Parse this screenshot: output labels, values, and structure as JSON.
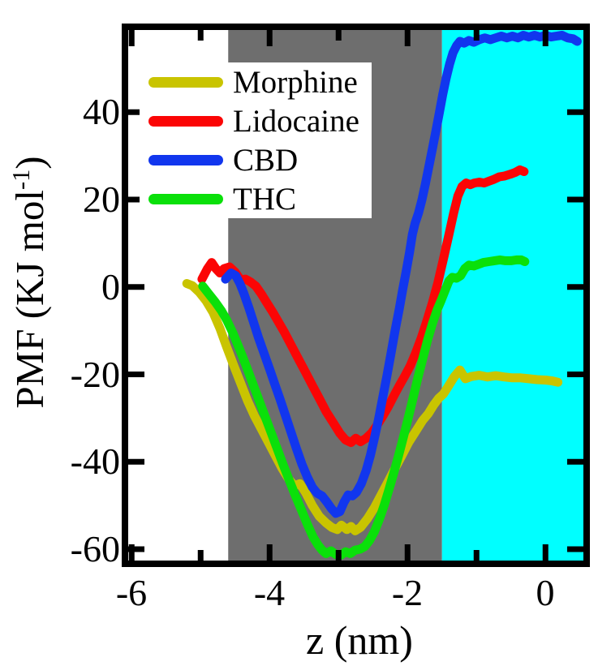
{
  "chart_data": {
    "type": "line",
    "title": "",
    "xlabel": "z (nm)",
    "ylabel": "PMF (KJ mol -1)",
    "ylabel_parts": {
      "main": "PMF (KJ mol",
      "superscript": "-1",
      "close": ")"
    },
    "xlim": [
      -6.05,
      0.55
    ],
    "ylim": [
      -62.6,
      58.8
    ],
    "grid": false,
    "x_ticks_major": [
      {
        "value": -6,
        "label": "-6"
      },
      {
        "value": -4,
        "label": "-4"
      },
      {
        "value": -2,
        "label": "-2"
      },
      {
        "value": 0,
        "label": "0"
      }
    ],
    "x_ticks_minor": [
      -5,
      -3,
      -1
    ],
    "y_ticks_major": [
      {
        "value": 40,
        "label": "40"
      },
      {
        "value": 20,
        "label": "20"
      },
      {
        "value": 0,
        "label": "0"
      },
      {
        "value": -20,
        "label": "-20"
      },
      {
        "value": -40,
        "label": "-40"
      },
      {
        "value": -60,
        "label": "-60"
      }
    ],
    "regions": [
      {
        "name": "gray-band",
        "x0": -4.6,
        "x1": -1.5,
        "color": "#6e6e6e"
      },
      {
        "name": "cyan-band",
        "x0": -1.5,
        "x1": 0.55,
        "color": "#00ffff"
      }
    ],
    "legend": {
      "position": "upper-left",
      "entries": [
        "Morphine",
        "Lidocaine",
        "CBD",
        "THC"
      ]
    },
    "series": [
      {
        "name": "Morphine",
        "color": "#c9c400",
        "points": [
          [
            -5.2,
            0.8
          ],
          [
            -5.12,
            0.3
          ],
          [
            -5.02,
            -1.2
          ],
          [
            -4.92,
            -3.2
          ],
          [
            -4.82,
            -5.8
          ],
          [
            -4.72,
            -9.5
          ],
          [
            -4.62,
            -13.8
          ],
          [
            -4.52,
            -18.0
          ],
          [
            -4.42,
            -22.0
          ],
          [
            -4.32,
            -26.0
          ],
          [
            -4.22,
            -29.5
          ],
          [
            -4.12,
            -32.5
          ],
          [
            -4.02,
            -35.5
          ],
          [
            -3.92,
            -38.5
          ],
          [
            -3.82,
            -41.5
          ],
          [
            -3.72,
            -44.0
          ],
          [
            -3.64,
            -45.5
          ],
          [
            -3.56,
            -45.0
          ],
          [
            -3.48,
            -47.0
          ],
          [
            -3.38,
            -50.0
          ],
          [
            -3.28,
            -52.5
          ],
          [
            -3.18,
            -54.0
          ],
          [
            -3.1,
            -55.0
          ],
          [
            -3.02,
            -55.5
          ],
          [
            -2.96,
            -54.5
          ],
          [
            -2.88,
            -55.5
          ],
          [
            -2.82,
            -54.8
          ],
          [
            -2.76,
            -55.8
          ],
          [
            -2.68,
            -55.0
          ],
          [
            -2.58,
            -53.0
          ],
          [
            -2.48,
            -50.5
          ],
          [
            -2.38,
            -47.5
          ],
          [
            -2.28,
            -44.5
          ],
          [
            -2.18,
            -41.5
          ],
          [
            -2.08,
            -38.5
          ],
          [
            -1.98,
            -35.5
          ],
          [
            -1.88,
            -33.0
          ],
          [
            -1.78,
            -30.5
          ],
          [
            -1.7,
            -29.0
          ],
          [
            -1.62,
            -27.0
          ],
          [
            -1.55,
            -25.5
          ],
          [
            -1.48,
            -24.5
          ],
          [
            -1.4,
            -22.5
          ],
          [
            -1.32,
            -20.5
          ],
          [
            -1.24,
            -19.0
          ],
          [
            -1.16,
            -21.0
          ],
          [
            -1.08,
            -20.5
          ],
          [
            -0.96,
            -20.2
          ],
          [
            -0.84,
            -20.6
          ],
          [
            -0.72,
            -20.3
          ],
          [
            -0.6,
            -20.6
          ],
          [
            -0.48,
            -20.8
          ],
          [
            -0.36,
            -20.8
          ],
          [
            -0.24,
            -21.0
          ],
          [
            -0.12,
            -21.2
          ],
          [
            0.0,
            -21.3
          ],
          [
            0.1,
            -21.5
          ],
          [
            0.18,
            -21.8
          ]
        ]
      },
      {
        "name": "Lidocaine",
        "color": "#fb0505",
        "points": [
          [
            -4.98,
            1.8
          ],
          [
            -4.9,
            4.2
          ],
          [
            -4.84,
            5.6
          ],
          [
            -4.78,
            4.2
          ],
          [
            -4.72,
            3.2
          ],
          [
            -4.66,
            4.2
          ],
          [
            -4.58,
            4.6
          ],
          [
            -4.5,
            3.4
          ],
          [
            -4.42,
            1.6
          ],
          [
            -4.35,
            1.8
          ],
          [
            -4.28,
            1.2
          ],
          [
            -4.2,
            0.2
          ],
          [
            -4.12,
            -1.6
          ],
          [
            -4.04,
            -3.6
          ],
          [
            -3.96,
            -5.6
          ],
          [
            -3.88,
            -7.8
          ],
          [
            -3.78,
            -10.5
          ],
          [
            -3.68,
            -13.5
          ],
          [
            -3.58,
            -16.5
          ],
          [
            -3.48,
            -19.5
          ],
          [
            -3.38,
            -22.5
          ],
          [
            -3.28,
            -25.5
          ],
          [
            -3.18,
            -28.5
          ],
          [
            -3.08,
            -31.0
          ],
          [
            -2.98,
            -33.5
          ],
          [
            -2.9,
            -35.0
          ],
          [
            -2.82,
            -35.6
          ],
          [
            -2.75,
            -34.6
          ],
          [
            -2.68,
            -35.4
          ],
          [
            -2.6,
            -34.6
          ],
          [
            -2.52,
            -33.4
          ],
          [
            -2.44,
            -31.6
          ],
          [
            -2.36,
            -29.6
          ],
          [
            -2.28,
            -27.4
          ],
          [
            -2.2,
            -25.0
          ],
          [
            -2.12,
            -22.6
          ],
          [
            -2.04,
            -20.4
          ],
          [
            -1.96,
            -18.0
          ],
          [
            -1.88,
            -15.0
          ],
          [
            -1.8,
            -11.6
          ],
          [
            -1.72,
            -7.8
          ],
          [
            -1.64,
            -3.6
          ],
          [
            -1.56,
            1.0
          ],
          [
            -1.48,
            6.4
          ],
          [
            -1.4,
            12.0
          ],
          [
            -1.33,
            17.0
          ],
          [
            -1.27,
            20.8
          ],
          [
            -1.21,
            23.0
          ],
          [
            -1.15,
            23.8
          ],
          [
            -1.09,
            23.4
          ],
          [
            -1.03,
            23.8
          ],
          [
            -0.96,
            24.0
          ],
          [
            -0.89,
            23.8
          ],
          [
            -0.82,
            24.2
          ],
          [
            -0.75,
            24.6
          ],
          [
            -0.67,
            25.2
          ],
          [
            -0.59,
            25.4
          ],
          [
            -0.51,
            25.8
          ],
          [
            -0.44,
            26.2
          ],
          [
            -0.37,
            26.8
          ],
          [
            -0.31,
            26.4
          ]
        ]
      },
      {
        "name": "CBD",
        "color": "#1136ee",
        "points": [
          [
            -4.64,
            1.8
          ],
          [
            -4.56,
            3.2
          ],
          [
            -4.49,
            2.6
          ],
          [
            -4.43,
            0.8
          ],
          [
            -4.37,
            -1.6
          ],
          [
            -4.3,
            -4.8
          ],
          [
            -4.23,
            -8.2
          ],
          [
            -4.16,
            -11.6
          ],
          [
            -4.08,
            -15.2
          ],
          [
            -4.0,
            -18.8
          ],
          [
            -3.93,
            -22.0
          ],
          [
            -3.85,
            -25.6
          ],
          [
            -3.77,
            -29.4
          ],
          [
            -3.69,
            -33.2
          ],
          [
            -3.61,
            -37.0
          ],
          [
            -3.53,
            -40.6
          ],
          [
            -3.45,
            -43.6
          ],
          [
            -3.38,
            -45.8
          ],
          [
            -3.31,
            -47.2
          ],
          [
            -3.24,
            -47.8
          ],
          [
            -3.17,
            -49.2
          ],
          [
            -3.1,
            -50.8
          ],
          [
            -3.04,
            -51.8
          ],
          [
            -2.98,
            -51.4
          ],
          [
            -2.92,
            -49.2
          ],
          [
            -2.86,
            -47.6
          ],
          [
            -2.8,
            -47.8
          ],
          [
            -2.74,
            -47.0
          ],
          [
            -2.67,
            -45.0
          ],
          [
            -2.6,
            -42.0
          ],
          [
            -2.54,
            -38.6
          ],
          [
            -2.48,
            -34.6
          ],
          [
            -2.42,
            -30.2
          ],
          [
            -2.36,
            -25.4
          ],
          [
            -2.3,
            -20.4
          ],
          [
            -2.24,
            -15.2
          ],
          [
            -2.18,
            -10.0
          ],
          [
            -2.12,
            -5.0
          ],
          [
            -2.07,
            -0.6
          ],
          [
            -2.02,
            3.6
          ],
          [
            -1.97,
            8.0
          ],
          [
            -1.93,
            12.0
          ],
          [
            -1.89,
            14.6
          ],
          [
            -1.84,
            17.0
          ],
          [
            -1.79,
            20.0
          ],
          [
            -1.74,
            23.6
          ],
          [
            -1.69,
            27.6
          ],
          [
            -1.64,
            31.6
          ],
          [
            -1.59,
            35.6
          ],
          [
            -1.54,
            39.8
          ],
          [
            -1.49,
            44.0
          ],
          [
            -1.44,
            47.8
          ],
          [
            -1.39,
            51.0
          ],
          [
            -1.34,
            53.6
          ],
          [
            -1.29,
            55.2
          ],
          [
            -1.24,
            56.2
          ],
          [
            -1.18,
            55.8
          ],
          [
            -1.11,
            56.4
          ],
          [
            -1.04,
            56.0
          ],
          [
            -0.96,
            56.6
          ],
          [
            -0.88,
            57.0
          ],
          [
            -0.8,
            56.6
          ],
          [
            -0.72,
            57.0
          ],
          [
            -0.64,
            57.4
          ],
          [
            -0.56,
            57.0
          ],
          [
            -0.48,
            57.4
          ],
          [
            -0.4,
            57.0
          ],
          [
            -0.32,
            57.6
          ],
          [
            -0.24,
            57.2
          ],
          [
            -0.16,
            57.6
          ],
          [
            -0.08,
            57.2
          ],
          [
            0.0,
            57.6
          ],
          [
            0.08,
            57.2
          ],
          [
            0.16,
            57.4
          ],
          [
            0.24,
            57.6
          ],
          [
            0.32,
            57.0
          ],
          [
            0.4,
            56.8
          ],
          [
            0.46,
            56.2
          ]
        ]
      },
      {
        "name": "THC",
        "color": "#0ae00a",
        "points": [
          [
            -4.97,
            0.2
          ],
          [
            -4.88,
            -1.6
          ],
          [
            -4.79,
            -3.4
          ],
          [
            -4.7,
            -5.4
          ],
          [
            -4.62,
            -7.6
          ],
          [
            -4.53,
            -10.6
          ],
          [
            -4.44,
            -14.0
          ],
          [
            -4.35,
            -17.6
          ],
          [
            -4.26,
            -21.4
          ],
          [
            -4.17,
            -25.2
          ],
          [
            -4.08,
            -29.0
          ],
          [
            -3.99,
            -32.8
          ],
          [
            -3.9,
            -36.6
          ],
          [
            -3.81,
            -40.4
          ],
          [
            -3.72,
            -44.0
          ],
          [
            -3.63,
            -47.6
          ],
          [
            -3.54,
            -51.0
          ],
          [
            -3.45,
            -54.4
          ],
          [
            -3.37,
            -57.2
          ],
          [
            -3.3,
            -59.0
          ],
          [
            -3.24,
            -60.2
          ],
          [
            -3.18,
            -61.0
          ],
          [
            -3.11,
            -60.4
          ],
          [
            -3.04,
            -61.2
          ],
          [
            -2.97,
            -61.4
          ],
          [
            -2.9,
            -60.6
          ],
          [
            -2.83,
            -61.0
          ],
          [
            -2.76,
            -60.2
          ],
          [
            -2.69,
            -60.0
          ],
          [
            -2.62,
            -59.4
          ],
          [
            -2.55,
            -58.0
          ],
          [
            -2.48,
            -56.0
          ],
          [
            -2.41,
            -53.2
          ],
          [
            -2.34,
            -50.0
          ],
          [
            -2.27,
            -46.4
          ],
          [
            -2.2,
            -42.6
          ],
          [
            -2.13,
            -38.6
          ],
          [
            -2.06,
            -34.4
          ],
          [
            -1.99,
            -30.0
          ],
          [
            -1.92,
            -25.4
          ],
          [
            -1.85,
            -20.8
          ],
          [
            -1.78,
            -16.4
          ],
          [
            -1.71,
            -12.2
          ],
          [
            -1.64,
            -8.4
          ],
          [
            -1.57,
            -5.2
          ],
          [
            -1.51,
            -3.0
          ],
          [
            -1.45,
            -0.6
          ],
          [
            -1.4,
            1.4
          ],
          [
            -1.35,
            2.2
          ],
          [
            -1.29,
            2.0
          ],
          [
            -1.23,
            2.6
          ],
          [
            -1.17,
            4.2
          ],
          [
            -1.11,
            5.0
          ],
          [
            -1.04,
            4.8
          ],
          [
            -0.97,
            5.2
          ],
          [
            -0.9,
            5.6
          ],
          [
            -0.82,
            5.8
          ],
          [
            -0.74,
            6.0
          ],
          [
            -0.66,
            6.2
          ],
          [
            -0.58,
            6.0
          ],
          [
            -0.5,
            6.0
          ],
          [
            -0.42,
            6.2
          ],
          [
            -0.35,
            6.2
          ],
          [
            -0.3,
            5.8
          ]
        ]
      }
    ],
    "style": {
      "frame_color": "#000000",
      "line_width": 11,
      "frame_width": 8,
      "tick_major_len": 20,
      "tick_minor_len": 13
    }
  }
}
